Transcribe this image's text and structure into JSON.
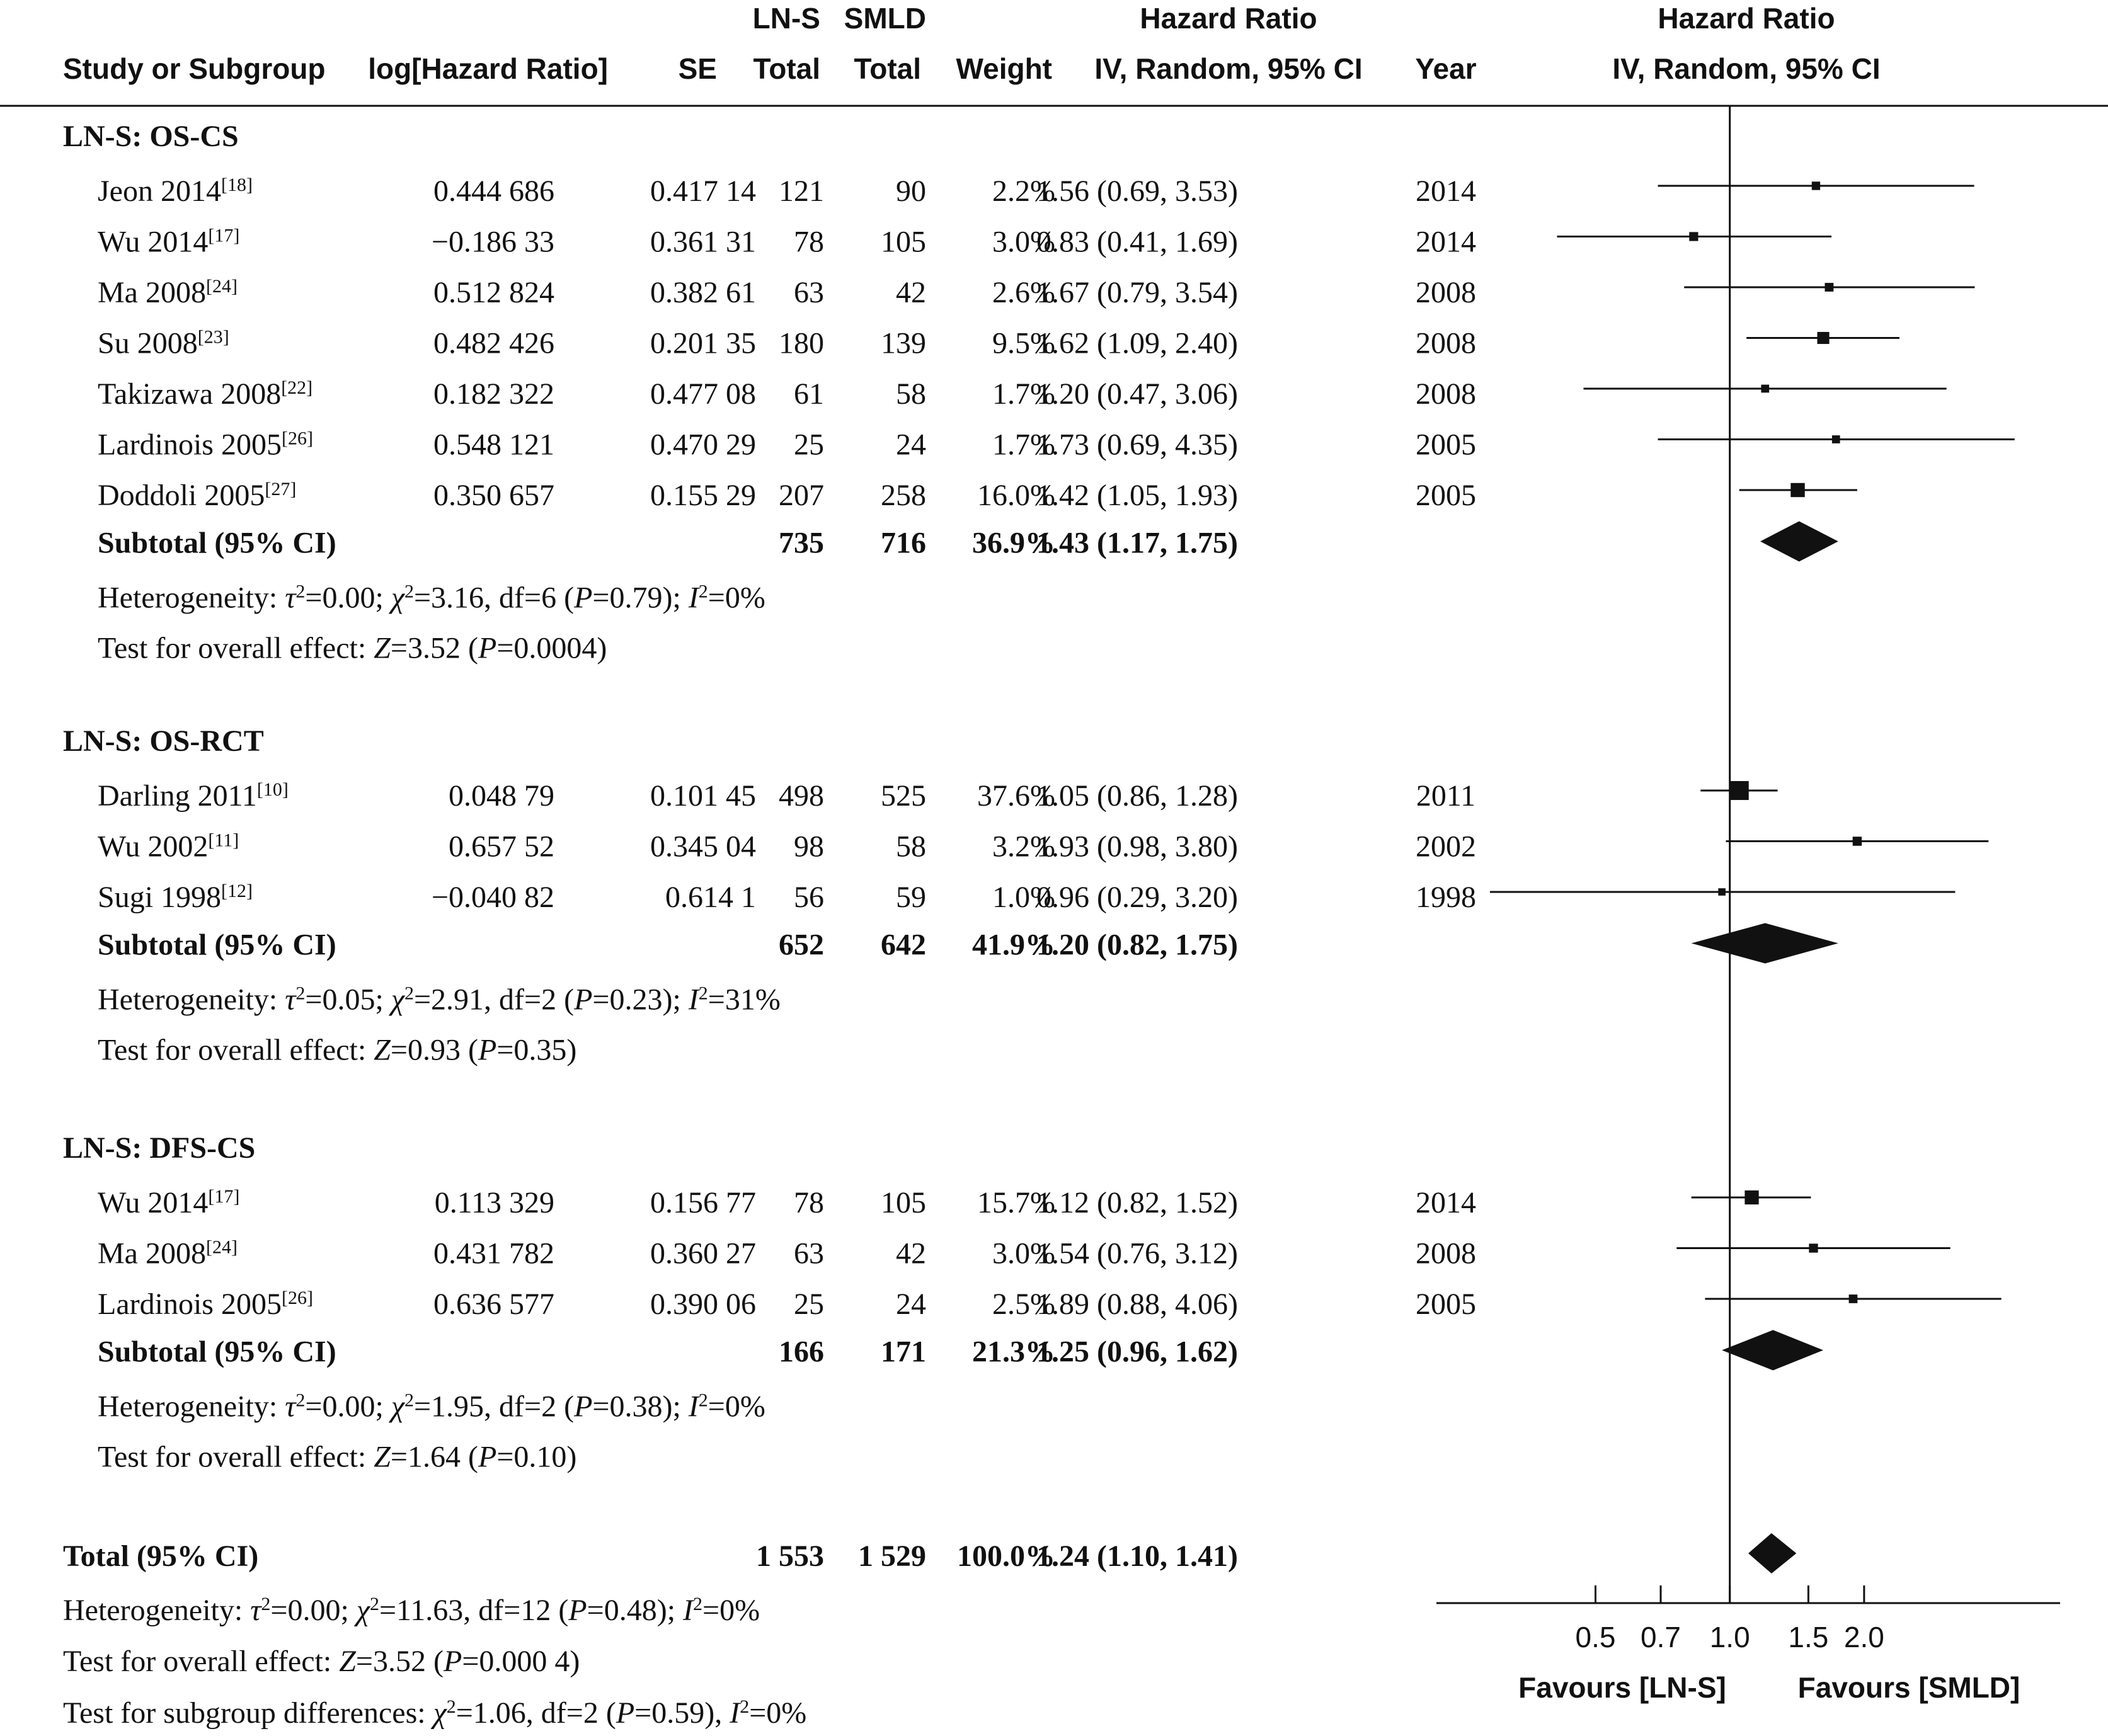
{
  "chart_data": {
    "type": "forest",
    "header": {
      "col_study": "Study or Subgroup",
      "col_loghr": "log[Hazard Ratio]",
      "col_se": "SE",
      "col_exp_top": "LN-S",
      "col_exp_bottom": "Total",
      "col_ctl_top": "SMLD",
      "col_ctl_bottom": "Total",
      "col_weight": "Weight",
      "col_hr_top": "Hazard Ratio",
      "col_hr_bottom": "IV, Random, 95% CI",
      "col_year": "Year",
      "plot_top": "Hazard Ratio",
      "plot_bottom": "IV, Random, 95% CI"
    },
    "groups": [
      {
        "title": "LN-S: OS-CS",
        "studies": [
          {
            "name": "Jeon 2014",
            "ref": "[18]",
            "loghr": "0.444 686",
            "se": "0.417 14",
            "n1": "121",
            "n2": "90",
            "weight": "2.2%",
            "hr_text": "1.56 (0.69, 3.53)",
            "year": "2014",
            "hr": 1.56,
            "lo": 0.69,
            "hi": 3.53,
            "w": 2.2
          },
          {
            "name": "Wu 2014",
            "ref": "[17]",
            "loghr": "−0.186 33",
            "se": "0.361 31",
            "n1": "78",
            "n2": "105",
            "weight": "3.0%",
            "hr_text": "0.83 (0.41, 1.69)",
            "year": "2014",
            "hr": 0.83,
            "lo": 0.41,
            "hi": 1.69,
            "w": 3.0
          },
          {
            "name": "Ma 2008",
            "ref": "[24]",
            "loghr": "0.512 824",
            "se": "0.382 61",
            "n1": "63",
            "n2": "42",
            "weight": "2.6%",
            "hr_text": "1.67 (0.79, 3.54)",
            "year": "2008",
            "hr": 1.67,
            "lo": 0.79,
            "hi": 3.54,
            "w": 2.6
          },
          {
            "name": "Su 2008",
            "ref": "[23]",
            "loghr": "0.482 426",
            "se": "0.201 35",
            "n1": "180",
            "n2": "139",
            "weight": "9.5%",
            "hr_text": "1.62 (1.09, 2.40)",
            "year": "2008",
            "hr": 1.62,
            "lo": 1.09,
            "hi": 2.4,
            "w": 9.5
          },
          {
            "name": "Takizawa 2008",
            "ref": "[22]",
            "loghr": "0.182 322",
            "se": "0.477 08",
            "n1": "61",
            "n2": "58",
            "weight": "1.7%",
            "hr_text": "1.20 (0.47, 3.06)",
            "year": "2008",
            "hr": 1.2,
            "lo": 0.47,
            "hi": 3.06,
            "w": 1.7
          },
          {
            "name": "Lardinois 2005",
            "ref": "[26]",
            "loghr": "0.548 121",
            "se": "0.470 29",
            "n1": "25",
            "n2": "24",
            "weight": "1.7%",
            "hr_text": "1.73 (0.69, 4.35)",
            "year": "2005",
            "hr": 1.73,
            "lo": 0.69,
            "hi": 4.35,
            "w": 1.7
          },
          {
            "name": "Doddoli 2005",
            "ref": "[27]",
            "loghr": "0.350 657",
            "se": "0.155 29",
            "n1": "207",
            "n2": "258",
            "weight": "16.0%",
            "hr_text": "1.42 (1.05, 1.93)",
            "year": "2005",
            "hr": 1.42,
            "lo": 1.05,
            "hi": 1.93,
            "w": 16.0
          }
        ],
        "subtotal": {
          "label": "Subtotal (95% CI)",
          "n1": "735",
          "n2": "716",
          "weight": "36.9%",
          "hr_text": "1.43 (1.17, 1.75)",
          "hr": 1.43,
          "lo": 1.17,
          "hi": 1.75
        },
        "het": {
          "tau2": "0.00",
          "chi2": "3.16",
          "df": "6",
          "p": "0.79",
          "i2": "0%"
        },
        "effect": {
          "z": "3.52",
          "p": "0.0004"
        }
      },
      {
        "title": "LN-S: OS-RCT",
        "studies": [
          {
            "name": "Darling 2011",
            "ref": "[10]",
            "loghr": "0.048 79",
            "se": "0.101 45",
            "n1": "498",
            "n2": "525",
            "weight": "37.6%",
            "hr_text": "1.05 (0.86, 1.28)",
            "year": "2011",
            "hr": 1.05,
            "lo": 0.86,
            "hi": 1.28,
            "w": 37.6
          },
          {
            "name": "Wu 2002",
            "ref": "[11]",
            "loghr": "0.657 52",
            "se": "0.345 04",
            "n1": "98",
            "n2": "58",
            "weight": "3.2%",
            "hr_text": "1.93 (0.98, 3.80)",
            "year": "2002",
            "hr": 1.93,
            "lo": 0.98,
            "hi": 3.8,
            "w": 3.2
          },
          {
            "name": "Sugi 1998",
            "ref": "[12]",
            "loghr": "−0.040 82",
            "se": "0.614 1",
            "n1": "56",
            "n2": "59",
            "weight": "1.0%",
            "hr_text": "0.96 (0.29, 3.20)",
            "year": "1998",
            "hr": 0.96,
            "lo": 0.29,
            "hi": 3.2,
            "w": 1.0
          }
        ],
        "subtotal": {
          "label": "Subtotal (95% CI)",
          "n1": "652",
          "n2": "642",
          "weight": "41.9%",
          "hr_text": "1.20 (0.82, 1.75)",
          "hr": 1.2,
          "lo": 0.82,
          "hi": 1.75
        },
        "het": {
          "tau2": "0.05",
          "chi2": "2.91",
          "df": "2",
          "p": "0.23",
          "i2": "31%"
        },
        "effect": {
          "z": "0.93",
          "p": "0.35"
        }
      },
      {
        "title": "LN-S: DFS-CS",
        "studies": [
          {
            "name": "Wu 2014",
            "ref": "[17]",
            "loghr": "0.113 329",
            "se": "0.156 77",
            "n1": "78",
            "n2": "105",
            "weight": "15.7%",
            "hr_text": "1.12 (0.82, 1.52)",
            "year": "2014",
            "hr": 1.12,
            "lo": 0.82,
            "hi": 1.52,
            "w": 15.7
          },
          {
            "name": "Ma 2008",
            "ref": "[24]",
            "loghr": "0.431 782",
            "se": "0.360 27",
            "n1": "63",
            "n2": "42",
            "weight": "3.0%",
            "hr_text": "1.54 (0.76, 3.12)",
            "year": "2008",
            "hr": 1.54,
            "lo": 0.76,
            "hi": 3.12,
            "w": 3.0
          },
          {
            "name": "Lardinois 2005",
            "ref": "[26]",
            "loghr": "0.636 577",
            "se": "0.390 06",
            "n1": "25",
            "n2": "24",
            "weight": "2.5%",
            "hr_text": "1.89 (0.88, 4.06)",
            "year": "2005",
            "hr": 1.89,
            "lo": 0.88,
            "hi": 4.06,
            "w": 2.5
          }
        ],
        "subtotal": {
          "label": "Subtotal (95% CI)",
          "n1": "166",
          "n2": "171",
          "weight": "21.3%",
          "hr_text": "1.25 (0.96, 1.62)",
          "hr": 1.25,
          "lo": 0.96,
          "hi": 1.62
        },
        "het": {
          "tau2": "0.00",
          "chi2": "1.95",
          "df": "2",
          "p": "0.38",
          "i2": "0%"
        },
        "effect": {
          "z": "1.64",
          "p": "0.10"
        }
      }
    ],
    "total": {
      "label": "Total (95% CI)",
      "n1": "1 553",
      "n2": "1 529",
      "weight": "100.0%",
      "hr_text": "1.24 (1.10, 1.41)",
      "hr": 1.24,
      "lo": 1.1,
      "hi": 1.41,
      "het": {
        "tau2": "0.00",
        "chi2": "11.63",
        "df": "12",
        "p": "0.48",
        "i2": "0%"
      },
      "effect": {
        "z": "3.52",
        "p": "0.000 4"
      },
      "subgroup": {
        "chi2": "1.06",
        "df": "2",
        "p": "0.59",
        "i2": "0%"
      }
    },
    "x_axis": {
      "scale": "log",
      "ticks": [
        0.5,
        0.7,
        1.0,
        1.5,
        2.0
      ],
      "tick_labels": [
        "0.5",
        "0.7",
        "1.0",
        "1.5",
        "2.0"
      ],
      "reference_line": 1.0,
      "favours_left": "Favours [LN-S]",
      "favours_right": "Favours [SMLD]"
    },
    "labels": {
      "heterogeneity": "Heterogeneity:",
      "overall_effect": "Test for overall effect:",
      "subgroup_diff": "Test for subgroup differences:"
    }
  }
}
